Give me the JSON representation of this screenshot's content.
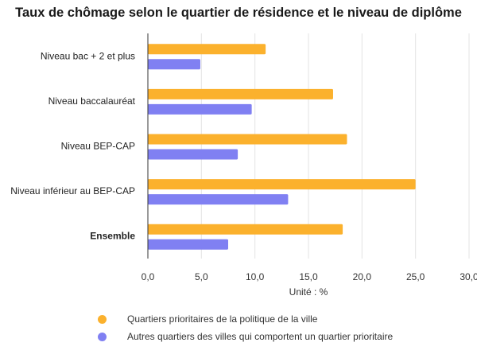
{
  "title": "Taux de chômage selon le quartier de résidence et le niveau de diplôme",
  "colors": {
    "accent_orange": "#fbb12d",
    "accent_purple": "#8080f2",
    "grid": "#e3e3e3",
    "axis": "#333333"
  },
  "chart_data": {
    "type": "bar",
    "orientation": "horizontal",
    "title": "Taux de chômage selon le quartier de résidence et le niveau de diplôme",
    "xlabel": "Unité : %",
    "ylabel": "",
    "xlim": [
      0,
      30
    ],
    "ticks": [
      "0,0",
      "5,0",
      "10,0",
      "15,0",
      "20,0",
      "25,0",
      "30,0"
    ],
    "tick_values": [
      0,
      5,
      10,
      15,
      20,
      25,
      30
    ],
    "grid": true,
    "legend_position": "bottom",
    "categories": [
      "Niveau bac + 2 et plus",
      "Niveau baccalauréat",
      "Niveau BEP-CAP",
      "Niveau inférieur au BEP-CAP",
      "Ensemble"
    ],
    "bold_categories": [
      "Ensemble"
    ],
    "series": [
      {
        "name": "Quartiers prioritaires de la politique de la ville",
        "color": "#fbb12d",
        "values": [
          11.0,
          17.3,
          18.6,
          25.0,
          18.2
        ]
      },
      {
        "name": "Autres quartiers des villes qui comportent un quartier prioritaire",
        "color": "#8080f2",
        "values": [
          4.9,
          9.7,
          8.4,
          13.1,
          7.5
        ]
      }
    ]
  }
}
